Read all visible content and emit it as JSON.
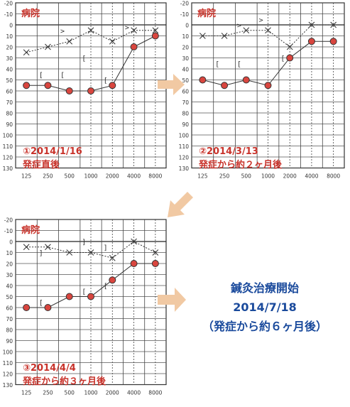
{
  "chart_data": [
    {
      "type": "line",
      "hospital_label": "病院",
      "date_label": "①2014/1/16",
      "status_label": "発症直後",
      "x": [
        "125",
        "250",
        "500",
        "1000",
        "2000",
        "4000",
        "8000"
      ],
      "y_ticks": [
        "-20",
        "-10",
        "0",
        "10",
        "20",
        "30",
        "40",
        "50",
        "60",
        "70",
        "80",
        "90",
        "100",
        "110",
        "120",
        "130"
      ],
      "ylim": [
        -20,
        130
      ],
      "y_inverted": true,
      "series": [
        {
          "marker": "filled-circle",
          "style": "solid",
          "color": "#b8322a",
          "values": [
            55,
            55,
            60,
            60,
            55,
            20,
            10
          ]
        },
        {
          "marker": "cross",
          "style": "dotted",
          "color": "#333333",
          "values": [
            25,
            20,
            15,
            5,
            15,
            5,
            5
          ]
        }
      ],
      "bone": [
        {
          "glyph": "[",
          "x": 1,
          "y": 45
        },
        {
          "glyph": "[",
          "x": 2,
          "y": 45
        },
        {
          "glyph": ">",
          "x": 2,
          "y": 5
        },
        {
          "glyph": "[",
          "x": 3,
          "y": 30
        },
        {
          "glyph": "[",
          "x": 4,
          "y": 50
        },
        {
          "glyph": ">",
          "x": 5,
          "y": 2
        }
      ]
    },
    {
      "type": "line",
      "hospital_label": "病院",
      "date_label": "②2014/3/13",
      "status_label": "発症から約２ヶ月後",
      "x": [
        "125",
        "250",
        "500",
        "1000",
        "2000",
        "4000",
        "8000"
      ],
      "y_ticks": [
        "-20",
        "-10",
        "0",
        "10",
        "20",
        "30",
        "40",
        "50",
        "60",
        "70",
        "80",
        "90",
        "100",
        "110",
        "120",
        "130"
      ],
      "ylim": [
        -20,
        130
      ],
      "y_inverted": true,
      "series": [
        {
          "marker": "filled-circle",
          "style": "solid",
          "color": "#b8322a",
          "values": [
            50,
            55,
            50,
            55,
            30,
            15,
            15
          ]
        },
        {
          "marker": "cross",
          "style": "dotted",
          "color": "#333333",
          "values": [
            10,
            10,
            5,
            5,
            20,
            0,
            0
          ]
        }
      ],
      "bone": [
        {
          "glyph": "[",
          "x": 1,
          "y": 35
        },
        {
          "glyph": "[",
          "x": 2,
          "y": 35
        },
        {
          "glyph": ">",
          "x": 2,
          "y": 0
        },
        {
          "glyph": "[",
          "x": 4,
          "y": 30
        },
        {
          "glyph": ">",
          "x": 3,
          "y": -5
        }
      ]
    },
    {
      "type": "line",
      "hospital_label": "病院",
      "date_label": "③2014/4/4",
      "status_label": "発症から約３ヶ月後",
      "x": [
        "125",
        "250",
        "500",
        "1000",
        "2000",
        "4000",
        "8000"
      ],
      "y_ticks": [
        "-20",
        "-10",
        "0",
        "10",
        "20",
        "30",
        "40",
        "50",
        "60",
        "70",
        "80",
        "90",
        "100",
        "110",
        "120",
        "130"
      ],
      "ylim": [
        -20,
        130
      ],
      "y_inverted": true,
      "series": [
        {
          "marker": "filled-circle",
          "style": "solid",
          "color": "#b8322a",
          "values": [
            60,
            60,
            50,
            50,
            35,
            20,
            20
          ]
        },
        {
          "marker": "cross",
          "style": "dotted",
          "color": "#333333",
          "values": [
            5,
            5,
            10,
            10,
            15,
            0,
            10
          ]
        }
      ],
      "bone": [
        {
          "glyph": "]",
          "x": 1,
          "y": 10
        },
        {
          "glyph": "[",
          "x": 1,
          "y": 55
        },
        {
          "glyph": "]",
          "x": 3,
          "y": 0
        },
        {
          "glyph": "[",
          "x": 3,
          "y": 45
        },
        {
          "glyph": "]",
          "x": 4,
          "y": 5
        },
        {
          "glyph": "[",
          "x": 4,
          "y": 40
        }
      ]
    }
  ],
  "side_text": {
    "line1": "鍼灸治療開始",
    "line2": "2014/7/18",
    "line3": "（発症から約６ヶ月後）"
  },
  "colors": {
    "label_red": "#c8322a",
    "side_blue": "#1a4a9c",
    "arrow": "#f1c9a3"
  }
}
